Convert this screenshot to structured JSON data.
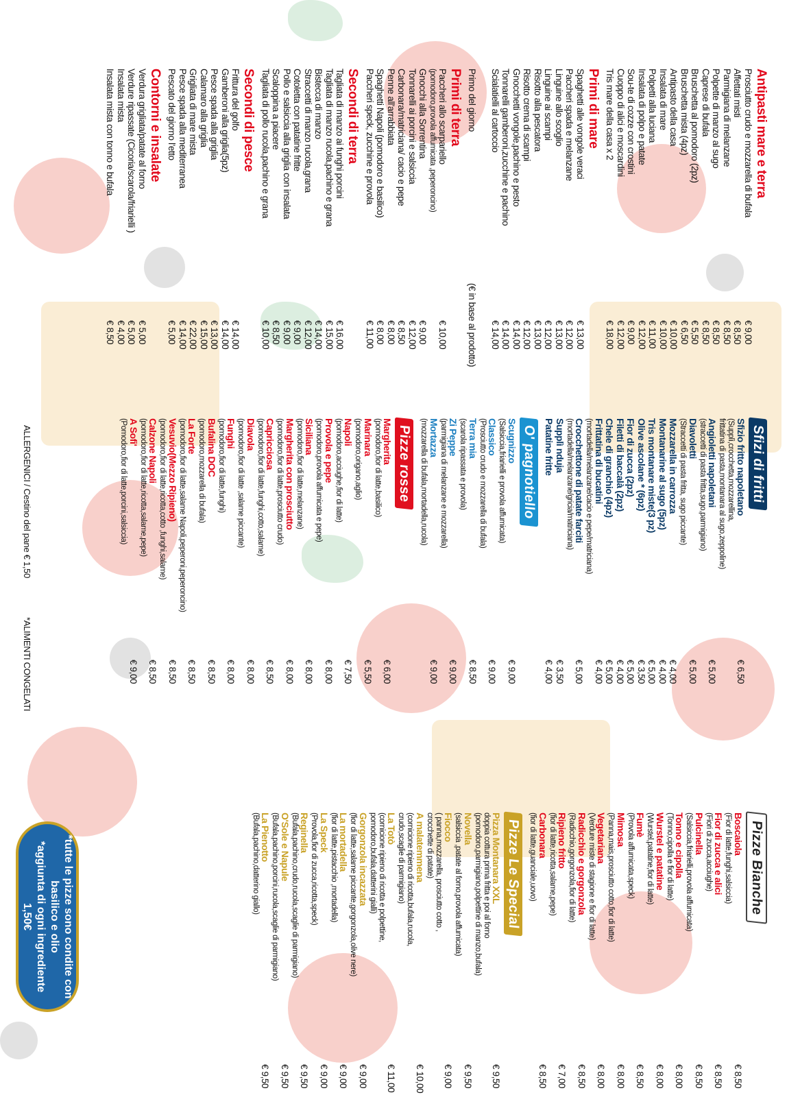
{
  "antipasti": {
    "title": "Antipasti mare e terra",
    "items": [
      {
        "name": "Prosciutto crudo e mozzarella di bufala",
        "price": "€ 9,00"
      },
      {
        "name": "Affettati misti",
        "price": "€ 8,50"
      },
      {
        "name": "Parmigiana di melanzane",
        "price": "€ 8,50"
      },
      {
        "name": "Polpette di manzo al sugo",
        "price": "€ 8,50"
      },
      {
        "name": "Caprese di bufala",
        "price": "€ 8,50"
      },
      {
        "name": "Bruschetta al pomodoro (2pz)",
        "price": "€ 5,50"
      },
      {
        "name": "Bruschetta mista (4pz)",
        "price": "€ 6,50"
      },
      {
        "name": "Antipasto della casa",
        "price": "€ 10,00"
      },
      {
        "name": "Insalata di mare",
        "price": "€ 10,00"
      },
      {
        "name": "Polpetti alla luciana",
        "price": "€ 11,00"
      },
      {
        "name": "Insalata di polpo e patate",
        "price": "€ 12,00"
      },
      {
        "name": "Sou-te di cozze con crostini",
        "price": "€ 9,00"
      },
      {
        "name": "Cuoppo di alici e moscardini",
        "price": "€ 12,00"
      },
      {
        "name": "Tris mare della casa x 2",
        "price": "€ 18,00"
      }
    ]
  },
  "primi_mare": {
    "title": "Primi di mare",
    "items": [
      {
        "name": "Spaghetti alle vongole veraci",
        "price": "€ 13,00"
      },
      {
        "name": "Paccheri spada e melanzane",
        "price": "€ 12,00"
      },
      {
        "name": "Linguine allo scoglio",
        "price": "€ 13,00"
      },
      {
        "name": "Linguine ai scampi",
        "price": "€ 12,00"
      },
      {
        "name": "Risotto alla pescatora",
        "price": "€ 13,00"
      },
      {
        "name": "Risotto crema di scampi",
        "price": "€ 12,00"
      },
      {
        "name": "Gnocchetti vongole,pachino e pesto",
        "price": "€ 14,00"
      },
      {
        "name": "Tonnarelli gamberoni,zucchine e pachino",
        "price": "€ 14,00"
      },
      {
        "name": "Scialatielli al cartoccio",
        "price": "€ 14,00"
      }
    ]
  },
  "primo_giorno": {
    "name": "Primo del giorno",
    "price": "(€ in base al prodotto)"
  },
  "primi_terra": {
    "title": "Primi di terra",
    "items": [
      {
        "name": "Paccheri allo scarpariello",
        "desc": "(pomodoro,provola affumicata ,peperoncino)",
        "price": "€ 10,00"
      },
      {
        "name": "Gnocchi alla Sorrentina",
        "price": "€ 9,00"
      },
      {
        "name": "Tonnarelli ai porcini e salsiccia",
        "price": "€ 12,00"
      },
      {
        "name": "Carbonara/matriciana/ cacio e pepe",
        "price": "€ 8,50"
      },
      {
        "name": "Penne all'arrabbiata",
        "price": "€ 8,00"
      },
      {
        "name": "Spaghetti Napoli (pomodoro e basilico)",
        "price": "€ 8,00"
      },
      {
        "name": "Paccheri speck, zucchine e provola",
        "price": "€ 11,00"
      }
    ]
  },
  "secondi_terra": {
    "title": "Secondi di terra",
    "items": [
      {
        "name": "Tagliata di manzo ai funghi porcini",
        "price": "€ 16,00"
      },
      {
        "name": "Tagliata di manzo rucola,pachino e grana",
        "price": "€ 15,00"
      },
      {
        "name": "Bistecca di manzo",
        "price": "€ 14,00"
      },
      {
        "name": "Straccetti di manzo rucola,grana",
        "price": "€ 12,00"
      },
      {
        "name": "Cotoletta con patatine fritte",
        "price": "€ 9,00"
      },
      {
        "name": "Pollo e salsiccia alla griglia con insalata",
        "price": "€ 9,00"
      },
      {
        "name": "Scaloppina a piacere",
        "price": "€ 8,50"
      },
      {
        "name": "Tagliata di pollo rucola,pachino e grana",
        "price": "€ 10,00"
      }
    ]
  },
  "secondi_pesce": {
    "title": "Secondi di pesce",
    "items": [
      {
        "name": "Frittura del golfo",
        "price": "€ 14,00"
      },
      {
        "name": "Gamberoni alla griglia(5pz)",
        "price": "€ 14,00"
      },
      {
        "name": "Pesce spada alla griglia",
        "price": "€ 13,00"
      },
      {
        "name": "Calamaro alla griglia",
        "price": "€ 15,00"
      },
      {
        "name": "Grigliata di mare mista",
        "price": "€ 22,00"
      },
      {
        "name": "Pesce spada alla mediterranea",
        "price": "€ 14,00"
      },
      {
        "name": "Pescato del giorno l'etto",
        "price": "€ 5,00"
      }
    ]
  },
  "contorni": {
    "title": "Contorni e insalate",
    "items": [
      {
        "name": "Verdura grigliata/patate al forno",
        "price": "€ 5,00"
      },
      {
        "name": "Verdure ripassate (Cicoria/scarola/friarielli )",
        "price": "€ 5,00"
      },
      {
        "name": "Insalata mista",
        "price": "€ 4,00"
      },
      {
        "name": "Insalata mista con tonno e bufala",
        "price": "€ 8,50"
      }
    ]
  },
  "sfizi": {
    "title": "Sfizi di fritti",
    "items": [
      {
        "name": "Sfizio fritto napoletano",
        "desc": "(Supplì,crocchetta,mozzarellina,",
        "desc2": "frittatina di pasta,montanara al sugo,zeppoline)",
        "price": "€ 6,50"
      },
      {
        "name": "Angioletti napoletani",
        "desc": "(straccetti di pasta fritta,sugo,parmigiano)",
        "price": "€ 5,00"
      },
      {
        "name": "Diavoletti",
        "desc": "(Straccetti di pasta fritta, sugo piccante)",
        "price": "€ 5,00"
      },
      {
        "name": "Mozzarella in carrozza",
        "price": "€ 4,00"
      },
      {
        "name": "Montanarine al sugo (5pz)",
        "price": "€ 4,00"
      },
      {
        "name": "Tris montanare miste(3 pz)",
        "price": "€ 5,00"
      },
      {
        "name": "Olive ascolane * (6pz)",
        "price": "€ 3,50"
      },
      {
        "name": "Fior di zucca (2pz)",
        "price": "€ 5,00"
      },
      {
        "name": "Filetti di baccalà (2pz)",
        "price": "€ 4,00"
      },
      {
        "name": "Chele di granchio (4pz)",
        "price": "€ 5,00"
      },
      {
        "name": "Frittatina di bucatini",
        "desc": "(mortadella/melanzane/cacio e pepe/matriciana)",
        "price": "€ 4,00"
      },
      {
        "name": "Crocchettone di patate farciti",
        "desc": "(mortadella/melanzane/gricia/matriciana)",
        "price": "€ 5,00"
      },
      {
        "name": "Supplì nduja",
        "price": "€ 3,50"
      },
      {
        "name": "Patatine fritte",
        "price": "€ 4,00"
      }
    ]
  },
  "pagnotiello": {
    "title": "O' pagnotiello",
    "items": [
      {
        "name": "Scugnizzo",
        "desc": "(Salsiccia,friarielli e provola affumicata)",
        "price": "€ 9,00"
      },
      {
        "name": "Classico",
        "desc": "(Prosciutto crudo e mozzarella di bufala)",
        "price": "€ 9,00"
      },
      {
        "name": "Terra mia",
        "desc": "(scarola ripassata e provola)",
        "price": "€ 8,50"
      },
      {
        "name": "Zi Peppe",
        "desc": "(parmigiana di melanzane e mozzarella)",
        "price": "€ 9,00"
      },
      {
        "name": "Mortazza",
        "desc": "(mozzarella di bufala,mortadella,rucola)",
        "price": "€ 9,00"
      }
    ]
  },
  "pizze_rosse": {
    "title": "Pizze rosse",
    "items": [
      {
        "name": "Margherita",
        "desc": "(pomodoro,fior di latte,basilico)",
        "price": "€ 6,00"
      },
      {
        "name": "Marinara",
        "desc": "(pomodoro,origano,aglio)",
        "price": "€ 5,50"
      },
      {
        "name": "Napoli",
        "desc": "(pomodoro,acciughe,fior di latte)",
        "price": "€ 7,50"
      },
      {
        "name": "Provola e pepe",
        "desc": "(pomodoro,provola affumicata e pepe)",
        "price": "€ 8,00"
      },
      {
        "name": "Siciliana",
        "desc": "(pomodoro,fior di latte,melanzane)",
        "price": "€ 8,00"
      },
      {
        "name": "Margherita con prosciutto",
        "desc": "(pomodoro,fior di latte,prosciutto crudo)",
        "price": "€ 8,00"
      },
      {
        "name": "Capricciosa",
        "desc": "(pomodoro,fior di latte,funghi,cotto,salame)",
        "price": "€ 8,50"
      },
      {
        "name": "Diavola",
        "desc": "(pomodoro,fior di latte ,salame piccante)",
        "price": "€ 8,00"
      },
      {
        "name": "Funghi",
        "desc": "(pomodoro,fior di latte,funghi)",
        "price": "€ 8,00"
      },
      {
        "name": "Bufalina DOC",
        "desc": "(pomodoro,mozzarella di bufala)",
        "price": "€ 8,50"
      },
      {
        "name": "La Forte",
        "desc": "(pomodoro,fior di latte,salame Napoli,peperoni,peperoncino)",
        "price": "€ 8,50"
      },
      {
        "name": "Vesuvio(Mezzo Ripieno)",
        "desc": "(pomodoro,fior di latte,ricotta,cotto ,funghi,salame)",
        "price": "€ 8,50"
      },
      {
        "name": "Calzone Napoli",
        "desc": "(pomodoro,fior di latte,ricotta,salame,pepe)",
        "price": "€ 8,50"
      },
      {
        "name": "A Sofi'",
        "desc": "(Pomodoro,fior di latte,porcini,salsiccia)",
        "price": "€ 9,00"
      }
    ]
  },
  "footer": {
    "allergeni": "ALLERGENICI / Cestino del pane € 1,50",
    "congelati": "*ALIMENTI CONGELATI"
  },
  "pizze_bianche": {
    "title": "Pizze Bianche",
    "items": [
      {
        "name": "Boscaiola",
        "desc": "(Fior di latte,funghi,salsiccia)",
        "price": "€ 8,50"
      },
      {
        "name": "Fior di zucca e alici",
        "desc": "(Fiori di zucca,acciughe)",
        "price": "€ 8,50"
      },
      {
        "name": "Pulcinella",
        "desc": "(Salsiccia,friarielli,provola affumicata)",
        "price": "€ 8,50"
      },
      {
        "name": "Tonno e cipolla",
        "desc": "(Tonno,cipolla e fior di latte)",
        "price": "€ 8,00"
      },
      {
        "name": "Wurstel e patatine",
        "desc": "(Wurstel,patatine,fior di latte)",
        "price": "€ 8,00"
      },
      {
        "name": "Fumè",
        "desc": "(Provola affumicata,speck)",
        "price": "€ 8,50"
      },
      {
        "name": "Mimosa",
        "desc": "(Panna,mais,prosciutto cotto,fior di latte)",
        "price": "€ 8,00"
      },
      {
        "name": "Vegetariana",
        "desc": "(Verdure miste di stagione e fior di latte)",
        "price": "€ 8,00"
      },
      {
        "name": "Radicchio e gorgonzola",
        "desc": "(Radicchio,gorgonzola,fior di latte)",
        "price": "€ 8,50"
      },
      {
        "name": "Ripieno fritto",
        "desc": "(fior di latte,ricotta,salame,pepe)",
        "price": "€ 7,00"
      },
      {
        "name": "Carbonara",
        "desc": "(fior di latte,guanciale,uovo)",
        "price": "€ 8,50"
      }
    ]
  },
  "pizze_special": {
    "title": "Pizze Le Special",
    "items": [
      {
        "name": "Pizza Montanara XXL",
        "desc": "doppia cottura prima fritta e poi al forno",
        "desc2": "(pomodoro,parmigiano,polpettine di manzo,bufala)",
        "price": "€ 9,50"
      },
      {
        "name": "Novella",
        "desc": "(salsiccia ,patate al forno,provola affumicata)",
        "price": "€ 9,50"
      },
      {
        "name": "Fiocco",
        "desc": "( panna,mozzarella, prosciutto cotto ,",
        "desc2": "crocchette di patate)",
        "price": "€ 9,00"
      },
      {
        "name": "A malatemmena",
        "desc": "(cornicione ripieno di ricotta,bufala,rucola,",
        "desc2": "crudo,scaglie di parmigiano)",
        "price": "€ 10,00"
      },
      {
        "name": "La Totò",
        "desc": "(cornicione ripieno di ricotta e polpettine,",
        "desc2": "pomodoro,bufala,datterini gialli)",
        "price": "€ 11,00"
      },
      {
        "name": "Gorgonzola incazzata",
        "desc": "(fior di latte,salame piccante,gorgonzola,olive nere)",
        "price": "€ 9,00"
      },
      {
        "name": "La mortadella",
        "desc": "(fior di latte,pistacchio ,mortadella)",
        "price": "€ 9,00"
      },
      {
        "name": "La Speck",
        "desc": "(Provola,fior di zucca,ricotta,speck)",
        "price": "€ 9,00"
      },
      {
        "name": "Reginella",
        "desc": "(Bufala,pachino,crudo,rucola,scaglie di parmigiano)",
        "price": "€ 9,50"
      },
      {
        "name": "O'Sole e Napule",
        "desc": "(Bufala,pachino,porcini,rucola,scaglie di parmigiano)",
        "price": "€ 9,50"
      },
      {
        "name": "La Pienotto",
        "desc": "(Bufala,pachino,datterino giallo)",
        "price": "€ 9,50"
      }
    ]
  },
  "badge": {
    "line1": "*tutte le pizze sono condite con",
    "line2": "basilico e olio",
    "line3": "*aggiunta di ogni ingrediente 1,50€"
  }
}
